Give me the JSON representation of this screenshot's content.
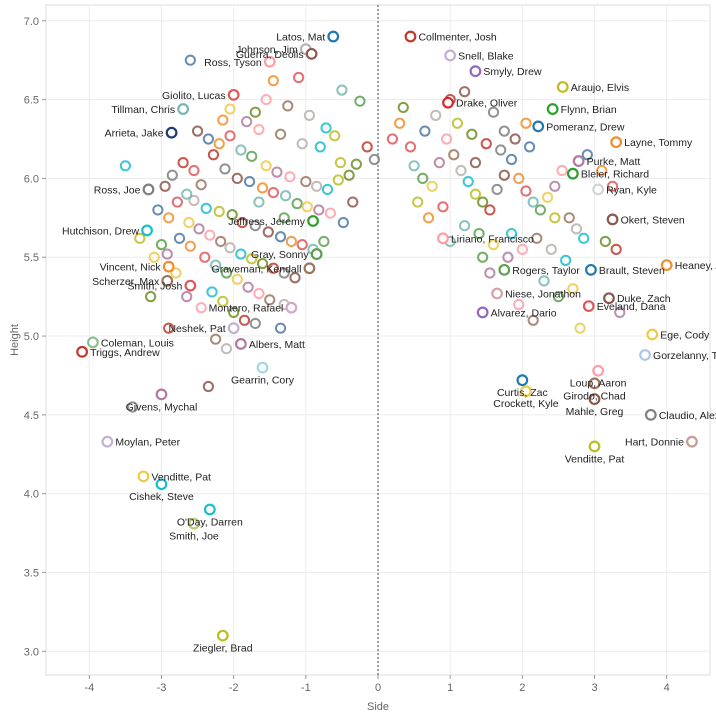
{
  "chart_data": {
    "type": "scatter",
    "xlabel": "Side",
    "ylabel": "Height",
    "xlim": [
      -4.6,
      4.6
    ],
    "ylim": [
      2.85,
      7.1
    ],
    "x_ticks": [
      "-4",
      "-3",
      "-2",
      "-1",
      "0",
      "1",
      "2",
      "3",
      "4"
    ],
    "y_ticks": [
      "3.0",
      "3.5",
      "4.0",
      "4.5",
      "5.0",
      "5.5",
      "6.0",
      "6.5",
      "7.0"
    ],
    "grid": true,
    "reference_line_x": 0,
    "palette": [
      "#4e79a7",
      "#f28e2b",
      "#e15759",
      "#76b7b2",
      "#59a14f",
      "#edc948",
      "#b07aa1",
      "#ff9da7",
      "#9c755f",
      "#bab0ac",
      "#17becf",
      "#bcbd22",
      "#6b8e23",
      "#c0392b",
      "#7f7f7f",
      "#8c564b"
    ],
    "labeled_points": [
      {
        "name": "Latos, Mat",
        "x": -0.62,
        "y": 6.9,
        "color": "#1f77b4"
      },
      {
        "name": "Collmenter, Josh",
        "x": 0.45,
        "y": 6.9,
        "color": "#c0392b"
      },
      {
        "name": "Johnson, Jim",
        "x": -1.0,
        "y": 6.82,
        "color": "#bab0ac"
      },
      {
        "name": "Guerra, Deolis",
        "x": -0.92,
        "y": 6.79,
        "color": "#8c564b"
      },
      {
        "name": "Snell, Blake",
        "x": 1.0,
        "y": 6.78,
        "color": "#c5b0d5"
      },
      {
        "name": "Ross, Tyson",
        "x": -1.5,
        "y": 6.74,
        "color": "#ff9da7"
      },
      {
        "name": "Smyly, Drew",
        "x": 1.35,
        "y": 6.68,
        "color": "#9467bd"
      },
      {
        "name": "Araujo, Elvis",
        "x": 2.56,
        "y": 6.58,
        "color": "#bcbd22"
      },
      {
        "name": "Drake, Oliver",
        "x": 0.97,
        "y": 6.48,
        "color": "#d62728"
      },
      {
        "name": "Giolito, Lucas",
        "x": -2.0,
        "y": 6.53,
        "color": "#e15759"
      },
      {
        "name": "Tillman, Chris",
        "x": -2.7,
        "y": 6.44,
        "color": "#76b7b2"
      },
      {
        "name": "Flynn, Brian",
        "x": 2.42,
        "y": 6.44,
        "color": "#2ca02c"
      },
      {
        "name": "Pomeranz, Drew",
        "x": 2.22,
        "y": 6.33,
        "color": "#1f77b4"
      },
      {
        "name": "Arrieta, Jake",
        "x": -2.86,
        "y": 6.29,
        "color": "#1f3a70"
      },
      {
        "name": "Layne, Tommy",
        "x": 3.3,
        "y": 6.23,
        "color": "#f28e2b"
      },
      {
        "name": "Purke, Matt",
        "x": 2.78,
        "y": 6.11,
        "color": "#b07aa1"
      },
      {
        "name": "Bleier, Richard",
        "x": 2.7,
        "y": 6.03,
        "color": "#2ca02c"
      },
      {
        "name": "Ross, Joe",
        "x": -3.18,
        "y": 5.93,
        "color": "#7f7f7f"
      },
      {
        "name": "Ryan, Kyle",
        "x": 3.05,
        "y": 5.93,
        "color": "#d3d3d3"
      },
      {
        "name": "Hutchison, Drew",
        "x": -3.2,
        "y": 5.67,
        "color": "#17becf"
      },
      {
        "name": "Jeffress, Jeremy",
        "x": -0.9,
        "y": 5.73,
        "color": "#2ca02c"
      },
      {
        "name": "Okert, Steven",
        "x": 3.25,
        "y": 5.74,
        "color": "#8c564b"
      },
      {
        "name": "Liriano, Francisco",
        "x": 0.9,
        "y": 5.62,
        "color": "#ff9da7"
      },
      {
        "name": "Gray, Sonny",
        "x": -0.85,
        "y": 5.52,
        "color": "#59a14f"
      },
      {
        "name": "Heaney, Andrew",
        "x": 4.0,
        "y": 5.45,
        "color": "#f28e2b"
      },
      {
        "name": "Vincent, Nick",
        "x": -2.9,
        "y": 5.44,
        "color": "#f28e2b"
      },
      {
        "name": "Graveman, Kendall",
        "x": -0.95,
        "y": 5.43,
        "color": "#9c755f"
      },
      {
        "name": "Rogers, Taylor",
        "x": 1.75,
        "y": 5.42,
        "color": "#59a14f"
      },
      {
        "name": "Brault, Steven",
        "x": 2.95,
        "y": 5.42,
        "color": "#1f77b4"
      },
      {
        "name": "Scherzer, Max",
        "x": -2.92,
        "y": 5.35,
        "color": "#9c755f"
      },
      {
        "name": "Niese, Jonathon",
        "x": 1.65,
        "y": 5.27,
        "color": "#d3a3a3"
      },
      {
        "name": "Duke, Zach",
        "x": 3.2,
        "y": 5.24,
        "color": "#8c564b"
      },
      {
        "name": "Smith, Josh",
        "x": -2.6,
        "y": 5.32,
        "color": "#e15759"
      },
      {
        "name": "Montero, Rafael",
        "x": -1.2,
        "y": 5.18,
        "color": "#d6a5c9"
      },
      {
        "name": "Alvarez, Dario",
        "x": 1.45,
        "y": 5.15,
        "color": "#9467bd"
      },
      {
        "name": "Eveland, Dana",
        "x": 2.92,
        "y": 5.19,
        "color": "#e15759"
      },
      {
        "name": "Neshek, Pat",
        "x": -2.0,
        "y": 5.05,
        "color": "#c5b0d5"
      },
      {
        "name": "Ege, Cody",
        "x": 3.8,
        "y": 5.01,
        "color": "#edc948"
      },
      {
        "name": "Coleman, Louis",
        "x": -3.95,
        "y": 4.96,
        "color": "#8fbc8f"
      },
      {
        "name": "Albers, Matt",
        "x": -1.9,
        "y": 4.95,
        "color": "#b07aa1"
      },
      {
        "name": "Triggs, Andrew",
        "x": -4.1,
        "y": 4.9,
        "color": "#c0392b"
      },
      {
        "name": "Gorzelanny, Tom",
        "x": 3.7,
        "y": 4.88,
        "color": "#aec7e8"
      },
      {
        "name": "Loup, Aaron",
        "x": 3.05,
        "y": 4.78,
        "color": "#ff9da7"
      },
      {
        "name": "Gearrin, Cory",
        "x": -1.6,
        "y": 4.8,
        "color": "#9edae5"
      },
      {
        "name": "Curtis, Zac",
        "x": 2.0,
        "y": 4.72,
        "color": "#1f77b4"
      },
      {
        "name": "Girodo, Chad",
        "x": 3.0,
        "y": 4.7,
        "color": "#9c755f"
      },
      {
        "name": "Crockett, Kyle",
        "x": 2.05,
        "y": 4.65,
        "color": "#edc948"
      },
      {
        "name": "Givens, Mychal",
        "x": -3.0,
        "y": 4.63,
        "color": "#b07aa1"
      },
      {
        "name": "Mahle, Greg",
        "x": 3.0,
        "y": 4.6,
        "color": "#8c564b"
      },
      {
        "name": "Claudio, Alex",
        "x": 3.78,
        "y": 4.5,
        "color": "#7f7f7f"
      },
      {
        "name": "Moylan, Peter",
        "x": -3.75,
        "y": 4.33,
        "color": "#c5b0d5"
      },
      {
        "name": "Hart, Donnie",
        "x": 4.35,
        "y": 4.33,
        "color": "#c49c94"
      },
      {
        "name": "Venditte, Pat",
        "x": 3.0,
        "y": 4.3,
        "color": "#bcbd22"
      },
      {
        "name": "Venditte, Pat",
        "x": -3.25,
        "y": 4.11,
        "color": "#edc948"
      },
      {
        "name": "Cishek, Steve",
        "x": -3.0,
        "y": 4.06,
        "color": "#17becf"
      },
      {
        "name": "O'Day, Darren",
        "x": -2.33,
        "y": 3.9,
        "color": "#17becf"
      },
      {
        "name": "Smith, Joe",
        "x": -2.55,
        "y": 3.81,
        "color": "#b5cf6b"
      },
      {
        "name": "Ziegler, Brad",
        "x": -2.15,
        "y": 3.1,
        "color": "#bcbd22"
      }
    ],
    "unlabeled_points": [
      [
        -2.6,
        6.75
      ],
      [
        -1.45,
        6.62
      ],
      [
        -1.1,
        6.64
      ],
      [
        -0.5,
        6.56
      ],
      [
        -0.25,
        6.49
      ],
      [
        -2.05,
        6.44
      ],
      [
        -1.82,
        6.36
      ],
      [
        -1.65,
        6.31
      ],
      [
        -1.35,
        6.28
      ],
      [
        -1.05,
        6.22
      ],
      [
        -0.8,
        6.2
      ],
      [
        -0.52,
        6.1
      ],
      [
        -0.3,
        6.09
      ],
      [
        -2.28,
        6.15
      ],
      [
        -2.12,
        6.06
      ],
      [
        -1.95,
        6.0
      ],
      [
        -1.78,
        5.98
      ],
      [
        -1.6,
        5.94
      ],
      [
        -1.45,
        5.91
      ],
      [
        -1.28,
        5.89
      ],
      [
        -1.12,
        5.84
      ],
      [
        -0.98,
        5.82
      ],
      [
        -0.82,
        5.8
      ],
      [
        -0.66,
        5.78
      ],
      [
        -2.45,
        5.96
      ],
      [
        -2.55,
        5.86
      ],
      [
        -2.38,
        5.81
      ],
      [
        -2.2,
        5.79
      ],
      [
        -2.02,
        5.77
      ],
      [
        -1.88,
        5.72
      ],
      [
        -1.7,
        5.7
      ],
      [
        -1.52,
        5.66
      ],
      [
        -1.35,
        5.63
      ],
      [
        -1.2,
        5.6
      ],
      [
        -1.05,
        5.58
      ],
      [
        -0.9,
        5.55
      ],
      [
        -0.75,
        5.6
      ],
      [
        -2.62,
        5.72
      ],
      [
        -2.48,
        5.68
      ],
      [
        -2.33,
        5.64
      ],
      [
        -2.18,
        5.6
      ],
      [
        -2.05,
        5.56
      ],
      [
        -1.9,
        5.52
      ],
      [
        -1.75,
        5.49
      ],
      [
        -1.6,
        5.46
      ],
      [
        -1.45,
        5.43
      ],
      [
        -1.3,
        5.4
      ],
      [
        -1.15,
        5.37
      ],
      [
        -2.75,
        5.62
      ],
      [
        -2.6,
        5.57
      ],
      [
        -2.4,
        5.5
      ],
      [
        -2.25,
        5.45
      ],
      [
        -2.1,
        5.4
      ],
      [
        -1.95,
        5.36
      ],
      [
        -1.8,
        5.31
      ],
      [
        -1.65,
        5.27
      ],
      [
        -1.5,
        5.23
      ],
      [
        -1.3,
        5.2
      ],
      [
        -2.3,
        5.28
      ],
      [
        -2.15,
        5.22
      ],
      [
        -2.0,
        5.15
      ],
      [
        -1.85,
        5.1
      ],
      [
        -1.7,
        5.08
      ],
      [
        -2.5,
        6.3
      ],
      [
        -2.35,
        6.25
      ],
      [
        -2.2,
        6.22
      ],
      [
        -2.05,
        6.27
      ],
      [
        -1.9,
        6.18
      ],
      [
        -1.75,
        6.14
      ],
      [
        -1.55,
        6.08
      ],
      [
        -1.4,
        6.04
      ],
      [
        -1.22,
        6.01
      ],
      [
        -1.0,
        5.98
      ],
      [
        -0.85,
        5.95
      ],
      [
        -0.7,
        5.93
      ],
      [
        -0.55,
        5.99
      ],
      [
        -0.4,
        6.02
      ],
      [
        -2.7,
        6.1
      ],
      [
        -2.85,
        6.02
      ],
      [
        -2.95,
        5.95
      ],
      [
        -3.05,
        5.8
      ],
      [
        -2.9,
        5.75
      ],
      [
        -2.78,
        5.85
      ],
      [
        -2.65,
        5.9
      ],
      [
        -3.0,
        5.58
      ],
      [
        -3.1,
        5.5
      ],
      [
        -2.92,
        5.52
      ],
      [
        -1.55,
        6.5
      ],
      [
        -1.25,
        6.46
      ],
      [
        -0.95,
        6.4
      ],
      [
        -0.72,
        6.32
      ],
      [
        -0.6,
        6.27
      ],
      [
        -1.7,
        6.42
      ],
      [
        -0.15,
        6.2
      ],
      [
        -0.05,
        6.12
      ],
      [
        -0.35,
        5.85
      ],
      [
        -0.48,
        5.72
      ],
      [
        -2.15,
        6.37
      ],
      [
        -2.55,
        6.05
      ],
      [
        -1.65,
        5.85
      ],
      [
        -1.3,
        5.75
      ],
      [
        -2.8,
        5.4
      ],
      [
        -2.65,
        5.25
      ],
      [
        -2.45,
        5.18
      ],
      [
        -2.25,
        4.98
      ],
      [
        -2.1,
        4.92
      ],
      [
        -3.5,
        6.08
      ],
      [
        -3.3,
        5.62
      ],
      [
        -3.15,
        5.25
      ],
      [
        -2.9,
        5.05
      ],
      [
        -3.4,
        4.55
      ],
      [
        -2.35,
        4.68
      ],
      [
        -1.35,
        5.05
      ],
      [
        0.3,
        6.35
      ],
      [
        0.45,
        6.2
      ],
      [
        0.5,
        6.08
      ],
      [
        0.62,
        6.0
      ],
      [
        0.75,
        5.95
      ],
      [
        0.85,
        6.1
      ],
      [
        0.95,
        6.25
      ],
      [
        1.05,
        6.15
      ],
      [
        1.15,
        6.05
      ],
      [
        1.25,
        5.98
      ],
      [
        1.35,
        5.9
      ],
      [
        1.45,
        5.85
      ],
      [
        1.55,
        5.8
      ],
      [
        1.65,
        5.93
      ],
      [
        1.75,
        6.02
      ],
      [
        1.85,
        6.12
      ],
      [
        1.95,
        6.0
      ],
      [
        2.05,
        5.92
      ],
      [
        2.15,
        5.85
      ],
      [
        2.25,
        5.8
      ],
      [
        2.35,
        5.88
      ],
      [
        2.45,
        5.95
      ],
      [
        2.55,
        6.05
      ],
      [
        2.65,
        5.75
      ],
      [
        2.75,
        5.68
      ],
      [
        2.85,
        5.62
      ],
      [
        1.1,
        6.35
      ],
      [
        1.3,
        6.28
      ],
      [
        1.5,
        6.22
      ],
      [
        1.7,
        6.18
      ],
      [
        1.9,
        6.25
      ],
      [
        2.1,
        6.2
      ],
      [
        0.7,
        5.75
      ],
      [
        0.9,
        5.82
      ],
      [
        1.2,
        5.7
      ],
      [
        1.4,
        5.65
      ],
      [
        1.6,
        5.58
      ],
      [
        1.8,
        5.5
      ],
      [
        2.0,
        5.55
      ],
      [
        2.2,
        5.62
      ],
      [
        2.4,
        5.55
      ],
      [
        2.6,
        5.48
      ],
      [
        0.55,
        5.85
      ],
      [
        0.35,
        6.45
      ],
      [
        1.0,
        6.5
      ],
      [
        1.6,
        6.42
      ],
      [
        1.2,
        6.55
      ],
      [
        2.9,
        6.15
      ],
      [
        3.1,
        6.05
      ],
      [
        3.25,
        5.95
      ],
      [
        2.3,
        5.35
      ],
      [
        2.5,
        5.25
      ],
      [
        2.7,
        5.3
      ],
      [
        1.55,
        5.4
      ],
      [
        1.95,
        5.2
      ],
      [
        2.15,
        5.1
      ],
      [
        0.8,
        6.4
      ],
      [
        1.85,
        5.65
      ],
      [
        2.45,
        5.75
      ],
      [
        3.15,
        5.6
      ],
      [
        3.3,
        5.55
      ],
      [
        1.75,
        6.3
      ],
      [
        1.35,
        6.1
      ],
      [
        0.65,
        6.3
      ],
      [
        2.05,
        6.35
      ],
      [
        0.2,
        6.25
      ],
      [
        1.0,
        5.6
      ],
      [
        1.45,
        5.5
      ],
      [
        2.8,
        5.05
      ],
      [
        3.35,
        5.15
      ]
    ]
  }
}
